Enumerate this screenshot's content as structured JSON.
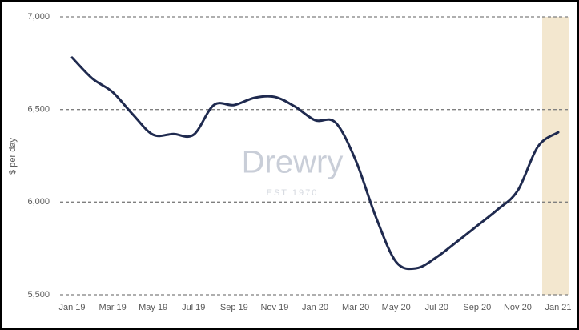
{
  "chart_data": {
    "type": "line",
    "y_label": "$ per day",
    "watermark": {
      "text": "Drewry",
      "subtitle": "EST 1970"
    },
    "categories": [
      "Jan 19",
      null,
      "Mar 19",
      null,
      "May 19",
      null,
      "Jul 19",
      null,
      "Sep 19",
      null,
      "Nov 19",
      null,
      "Jan 20",
      null,
      "Mar 20",
      null,
      "May 20",
      null,
      "Jul 20",
      null,
      "Sep 20",
      null,
      "Nov 20",
      null,
      "Jan 21"
    ],
    "series": [
      {
        "color": "#1f2a4f",
        "values": [
          6780,
          6667,
          6594,
          6473,
          6364,
          6368,
          6364,
          6524,
          6524,
          6563,
          6568,
          6516,
          6442,
          6430,
          6226,
          5919,
          5677,
          5643,
          5703,
          5786,
          5872,
          5959,
          6062,
          6300,
          6377
        ]
      }
    ],
    "ylim": [
      5500,
      7000
    ],
    "yticks": [
      {
        "value": 5500,
        "label": "5,500"
      },
      {
        "value": 6000,
        "label": "6,000"
      },
      {
        "value": 6500,
        "label": "6,500"
      },
      {
        "value": 7000,
        "label": "7,000"
      }
    ],
    "grid": true
  }
}
